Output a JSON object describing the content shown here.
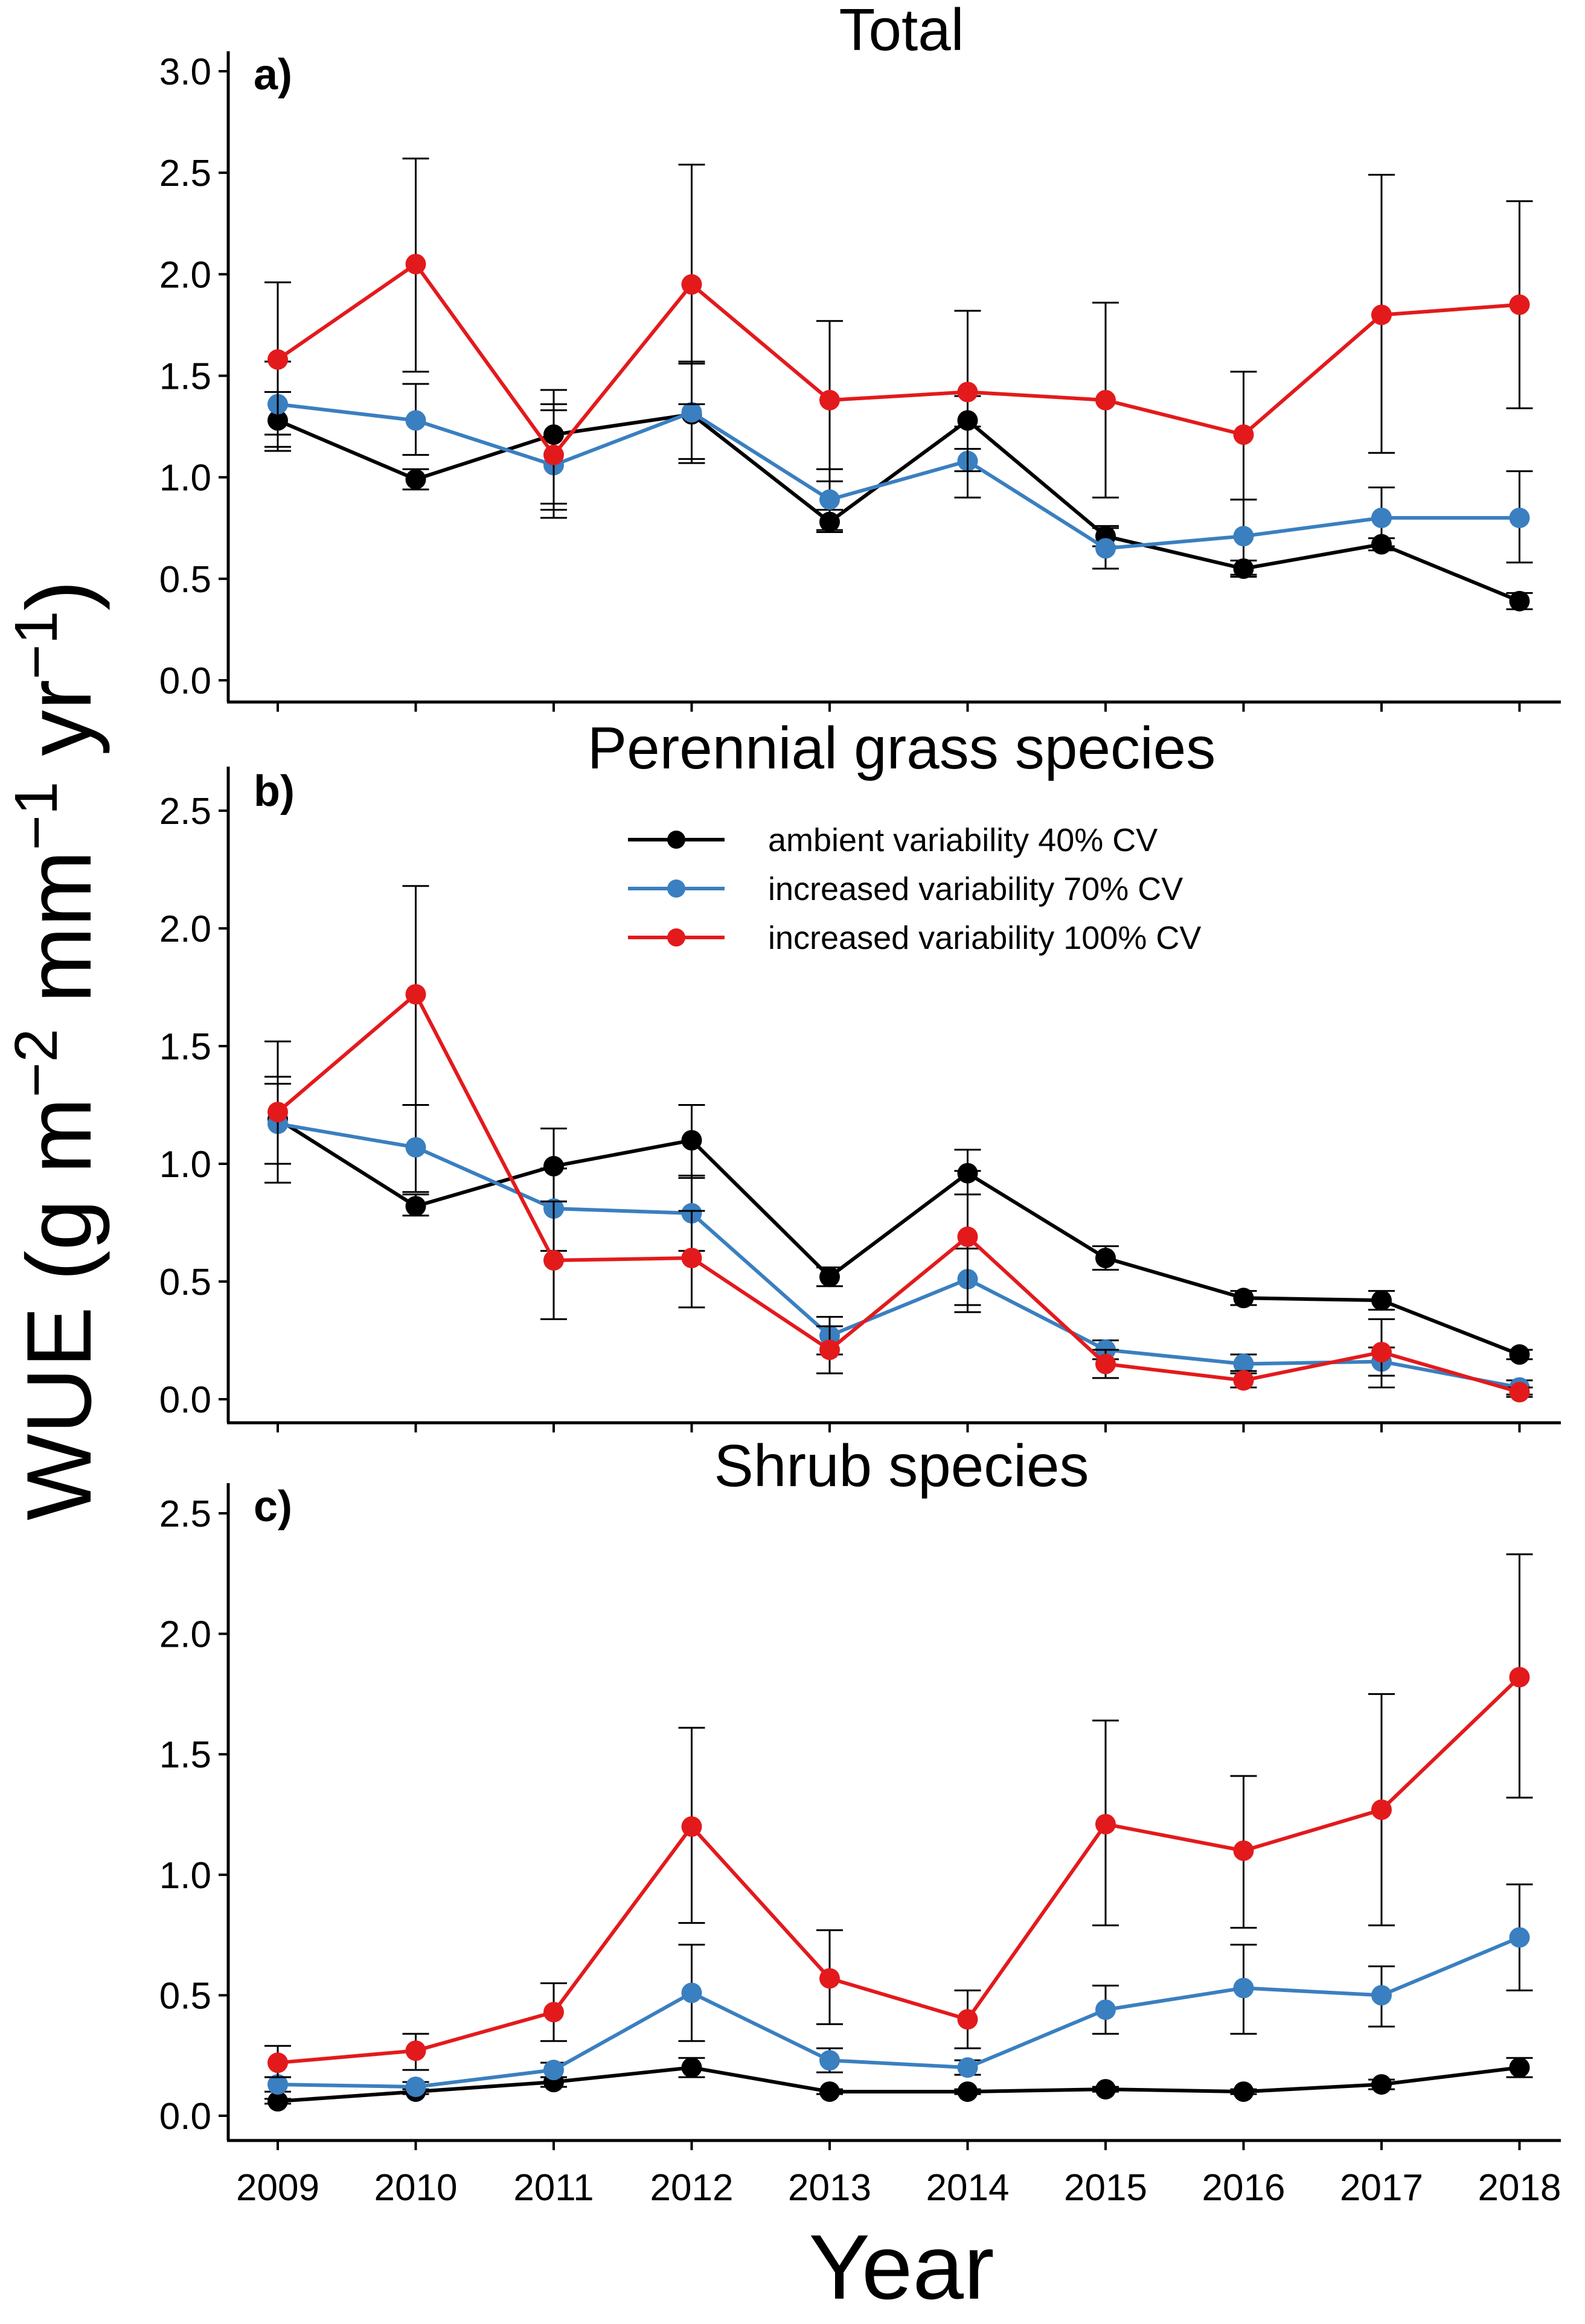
{
  "figure": {
    "ylabel_main": "WUE (g m",
    "ylabel_exp1": "−2",
    "ylabel_mid1": " mm",
    "ylabel_exp2": "−1",
    "ylabel_mid2": " yr",
    "ylabel_exp3": "−1",
    "ylabel_end": ")",
    "xlabel": "Year",
    "x_tick_labels": [
      "2009",
      "2010",
      "2011",
      "2012",
      "2013",
      "2014",
      "2015",
      "2016",
      "2017",
      "2018"
    ]
  },
  "legend": {
    "entries": [
      {
        "label": "ambient variability 40% CV",
        "color": "#000000"
      },
      {
        "label": "increased variability 70% CV",
        "color": "#3A7FC0"
      },
      {
        "label": "increased variability 100% CV",
        "color": "#E31A1C"
      }
    ]
  },
  "chart_data": [
    {
      "type": "line",
      "title": "Total",
      "panel_label": "a)",
      "x": [
        2009,
        2010,
        2011,
        2012,
        2013,
        2014,
        2015,
        2016,
        2017,
        2018
      ],
      "ylim": [
        0,
        3.0
      ],
      "yticks": [
        "0.0",
        "0.5",
        "1.0",
        "1.5",
        "2.0",
        "2.5",
        "3.0"
      ],
      "series": [
        {
          "name": "ambient variability 40% CV",
          "color": "#000000",
          "values": [
            1.28,
            0.99,
            1.21,
            1.31,
            0.78,
            1.28,
            0.71,
            0.55,
            0.67,
            0.39
          ],
          "lower": [
            1.13,
            0.94,
            0.84,
            1.07,
            0.73,
            1.14,
            0.66,
            0.51,
            0.64,
            0.35
          ],
          "upper": [
            1.42,
            1.04,
            1.43,
            1.57,
            0.84,
            1.4,
            0.76,
            0.59,
            0.7,
            0.43
          ]
        },
        {
          "name": "increased variability 70% CV",
          "color": "#3A7FC0",
          "values": [
            1.36,
            1.28,
            1.06,
            1.32,
            0.89,
            1.08,
            0.65,
            0.71,
            0.8,
            0.8
          ],
          "lower": [
            1.15,
            1.11,
            0.8,
            1.09,
            0.74,
            0.9,
            0.55,
            0.52,
            0.66,
            0.58
          ],
          "upper": [
            1.57,
            1.46,
            1.33,
            1.56,
            1.04,
            1.25,
            0.75,
            0.89,
            0.95,
            1.03
          ]
        },
        {
          "name": "increased variability 100% CV",
          "color": "#E31A1C",
          "values": [
            1.58,
            2.05,
            1.11,
            1.95,
            1.38,
            1.42,
            1.38,
            1.21,
            1.8,
            1.85
          ],
          "lower": [
            1.21,
            1.52,
            0.87,
            1.36,
            0.98,
            1.03,
            0.9,
            0.89,
            1.12,
            1.34
          ],
          "upper": [
            1.96,
            2.57,
            1.36,
            2.54,
            1.77,
            1.82,
            1.86,
            1.52,
            2.49,
            2.36
          ]
        }
      ]
    },
    {
      "type": "line",
      "title": "Perennial grass species",
      "panel_label": "b)",
      "x": [
        2009,
        2010,
        2011,
        2012,
        2013,
        2014,
        2015,
        2016,
        2017,
        2018
      ],
      "ylim": [
        0,
        2.5
      ],
      "yticks": [
        "0.0",
        "0.5",
        "1.0",
        "1.5",
        "2.0",
        "2.5"
      ],
      "series": [
        {
          "name": "ambient variability 40% CV",
          "color": "#000000",
          "values": [
            1.19,
            0.82,
            0.99,
            1.1,
            0.52,
            0.96,
            0.6,
            0.43,
            0.42,
            0.19
          ],
          "lower": [
            1.0,
            0.78,
            0.84,
            0.94,
            0.48,
            0.87,
            0.55,
            0.4,
            0.38,
            0.17
          ],
          "upper": [
            1.37,
            0.87,
            1.15,
            1.25,
            0.56,
            1.06,
            0.65,
            0.46,
            0.46,
            0.21
          ]
        },
        {
          "name": "increased variability 70% CV",
          "color": "#3A7FC0",
          "values": [
            1.17,
            1.07,
            0.81,
            0.79,
            0.27,
            0.51,
            0.21,
            0.15,
            0.16,
            0.05
          ],
          "lower": [
            1.0,
            0.88,
            0.63,
            0.63,
            0.19,
            0.37,
            0.17,
            0.11,
            0.1,
            0.02
          ],
          "upper": [
            1.34,
            1.25,
            0.98,
            0.95,
            0.35,
            0.64,
            0.25,
            0.19,
            0.22,
            0.08
          ]
        },
        {
          "name": "increased variability 100% CV",
          "color": "#E31A1C",
          "values": [
            1.22,
            1.72,
            0.59,
            0.6,
            0.21,
            0.69,
            0.15,
            0.08,
            0.2,
            0.03
          ],
          "lower": [
            0.92,
            1.25,
            0.34,
            0.39,
            0.11,
            0.4,
            0.09,
            0.05,
            0.05,
            0.01
          ],
          "upper": [
            1.52,
            2.18,
            0.84,
            0.8,
            0.31,
            0.97,
            0.21,
            0.12,
            0.34,
            0.05
          ]
        }
      ]
    },
    {
      "type": "line",
      "title": "Shrub species",
      "panel_label": "c)",
      "x": [
        2009,
        2010,
        2011,
        2012,
        2013,
        2014,
        2015,
        2016,
        2017,
        2018
      ],
      "ylim": [
        0,
        2.5
      ],
      "yticks": [
        "0.0",
        "0.5",
        "1.0",
        "1.5",
        "2.0",
        "2.5"
      ],
      "series": [
        {
          "name": "ambient variability 40% CV",
          "color": "#000000",
          "values": [
            0.06,
            0.1,
            0.14,
            0.2,
            0.1,
            0.1,
            0.11,
            0.1,
            0.13,
            0.2
          ],
          "lower": [
            0.05,
            0.09,
            0.12,
            0.16,
            0.09,
            0.09,
            0.1,
            0.09,
            0.11,
            0.16
          ],
          "upper": [
            0.07,
            0.11,
            0.16,
            0.24,
            0.11,
            0.11,
            0.12,
            0.11,
            0.15,
            0.24
          ]
        },
        {
          "name": "increased variability 70% CV",
          "color": "#3A7FC0",
          "values": [
            0.13,
            0.12,
            0.19,
            0.51,
            0.23,
            0.2,
            0.44,
            0.53,
            0.5,
            0.74
          ],
          "lower": [
            0.1,
            0.1,
            0.16,
            0.31,
            0.18,
            0.17,
            0.34,
            0.34,
            0.37,
            0.52
          ],
          "upper": [
            0.16,
            0.14,
            0.22,
            0.71,
            0.28,
            0.23,
            0.54,
            0.71,
            0.62,
            0.96
          ]
        },
        {
          "name": "increased variability 100% CV",
          "color": "#E31A1C",
          "values": [
            0.22,
            0.27,
            0.43,
            1.2,
            0.57,
            0.4,
            1.21,
            1.1,
            1.27,
            1.82
          ],
          "lower": [
            0.16,
            0.19,
            0.31,
            0.8,
            0.38,
            0.28,
            0.79,
            0.78,
            0.79,
            1.32
          ],
          "upper": [
            0.29,
            0.34,
            0.55,
            1.61,
            0.77,
            0.52,
            1.64,
            1.41,
            1.75,
            2.33
          ]
        }
      ]
    }
  ]
}
